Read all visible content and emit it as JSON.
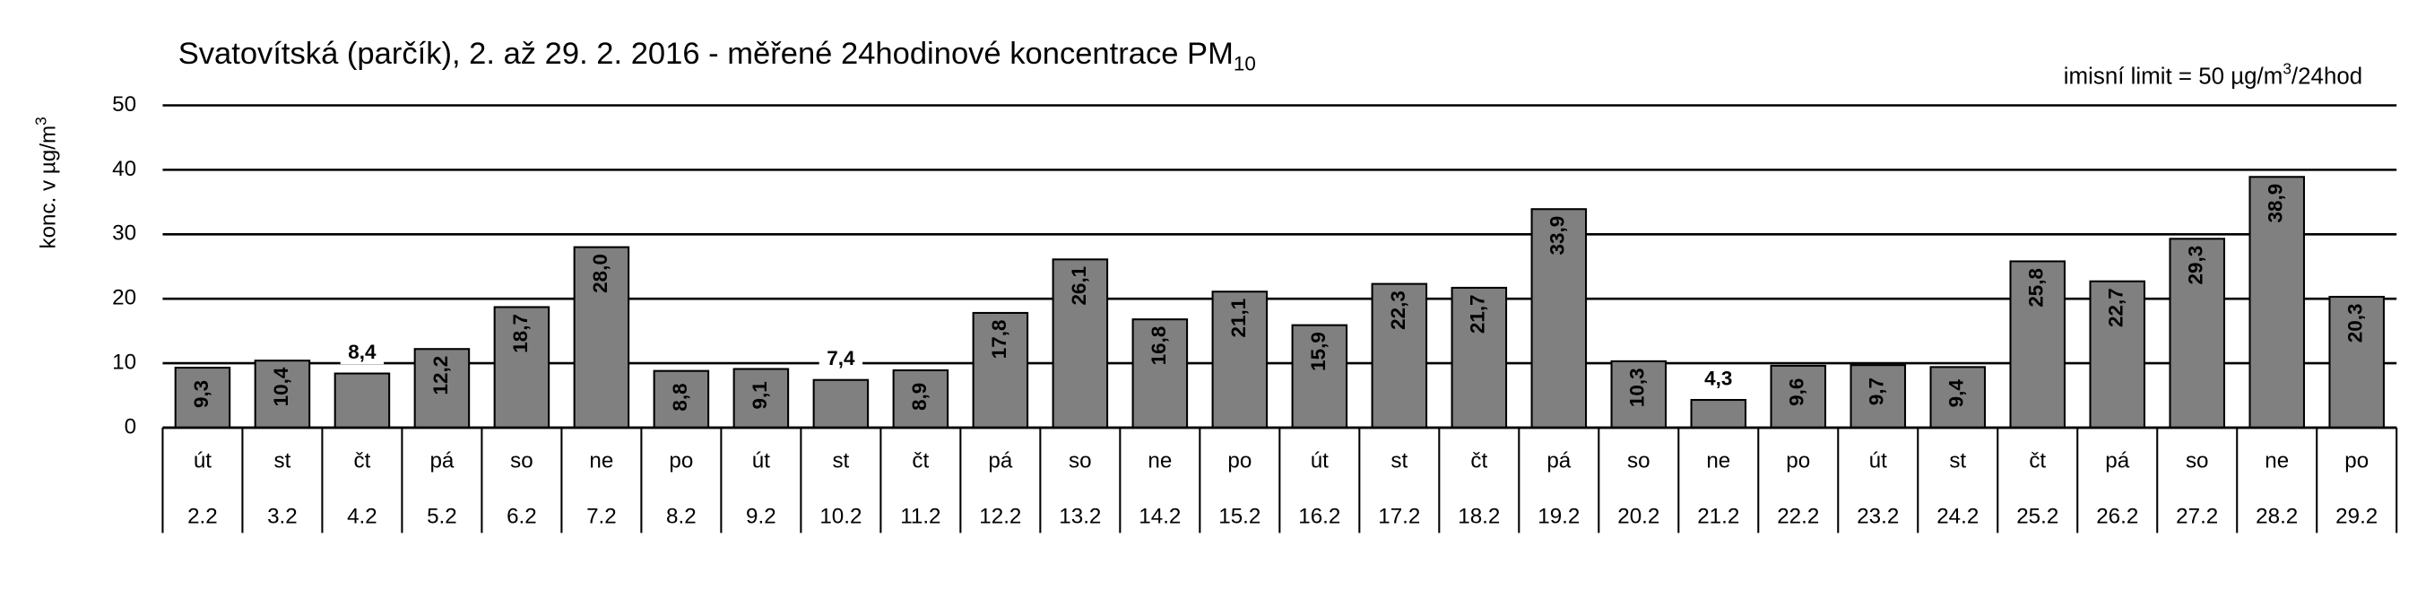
{
  "chart_data": {
    "type": "bar",
    "title": "Svatovítská (parčík), 2. až 29. 2. 2016 - měřené 24hodinové koncentrace PM",
    "title_subscript": "10",
    "annotation": "imisní limit = 50 µg/m",
    "annotation_superscript": "3",
    "annotation_end": "/24hod",
    "y_label": "konc. v µg/m",
    "y_label_superscript": "3",
    "categories": [
      "2.2",
      "3.2",
      "4.2",
      "5.2",
      "6.2",
      "7.2",
      "8.2",
      "9.2",
      "10.2",
      "11.2",
      "12.2",
      "13.2",
      "14.2",
      "15.2",
      "16.2",
      "17.2",
      "18.2",
      "19.2",
      "20.2",
      "21.2",
      "22.2",
      "23.2",
      "24.2",
      "25.2",
      "26.2",
      "27.2",
      "28.2",
      "29.2"
    ],
    "weekdays": [
      "út",
      "st",
      "čt",
      "pá",
      "so",
      "ne",
      "po",
      "út",
      "st",
      "čt",
      "pá",
      "so",
      "ne",
      "po",
      "út",
      "st",
      "čt",
      "pá",
      "so",
      "ne",
      "po",
      "út",
      "st",
      "čt",
      "pá",
      "so",
      "ne",
      "po"
    ],
    "values": [
      9.3,
      10.4,
      8.4,
      12.2,
      18.7,
      28.0,
      8.8,
      9.1,
      7.4,
      8.9,
      17.8,
      26.1,
      16.8,
      21.1,
      15.9,
      22.3,
      21.7,
      33.9,
      10.3,
      4.3,
      9.6,
      9.7,
      9.4,
      25.8,
      22.7,
      29.3,
      38.9,
      20.3
    ],
    "value_labels": [
      "9,3",
      "10,4",
      "8,4",
      "12,2",
      "18,7",
      "28,0",
      "8,8",
      "9,1",
      "7,4",
      "8,9",
      "17,8",
      "26,1",
      "16,8",
      "21,1",
      "15,9",
      "22,3",
      "21,7",
      "33,9",
      "10,3",
      "4,3",
      "9,6",
      "9,7",
      "9,4",
      "25,8",
      "22,7",
      "29,3",
      "38,9",
      "20,3"
    ],
    "color": "#808080",
    "ylim": [
      0,
      50
    ],
    "yticks": [
      0,
      10,
      20,
      30,
      40,
      50
    ],
    "grid": true
  }
}
